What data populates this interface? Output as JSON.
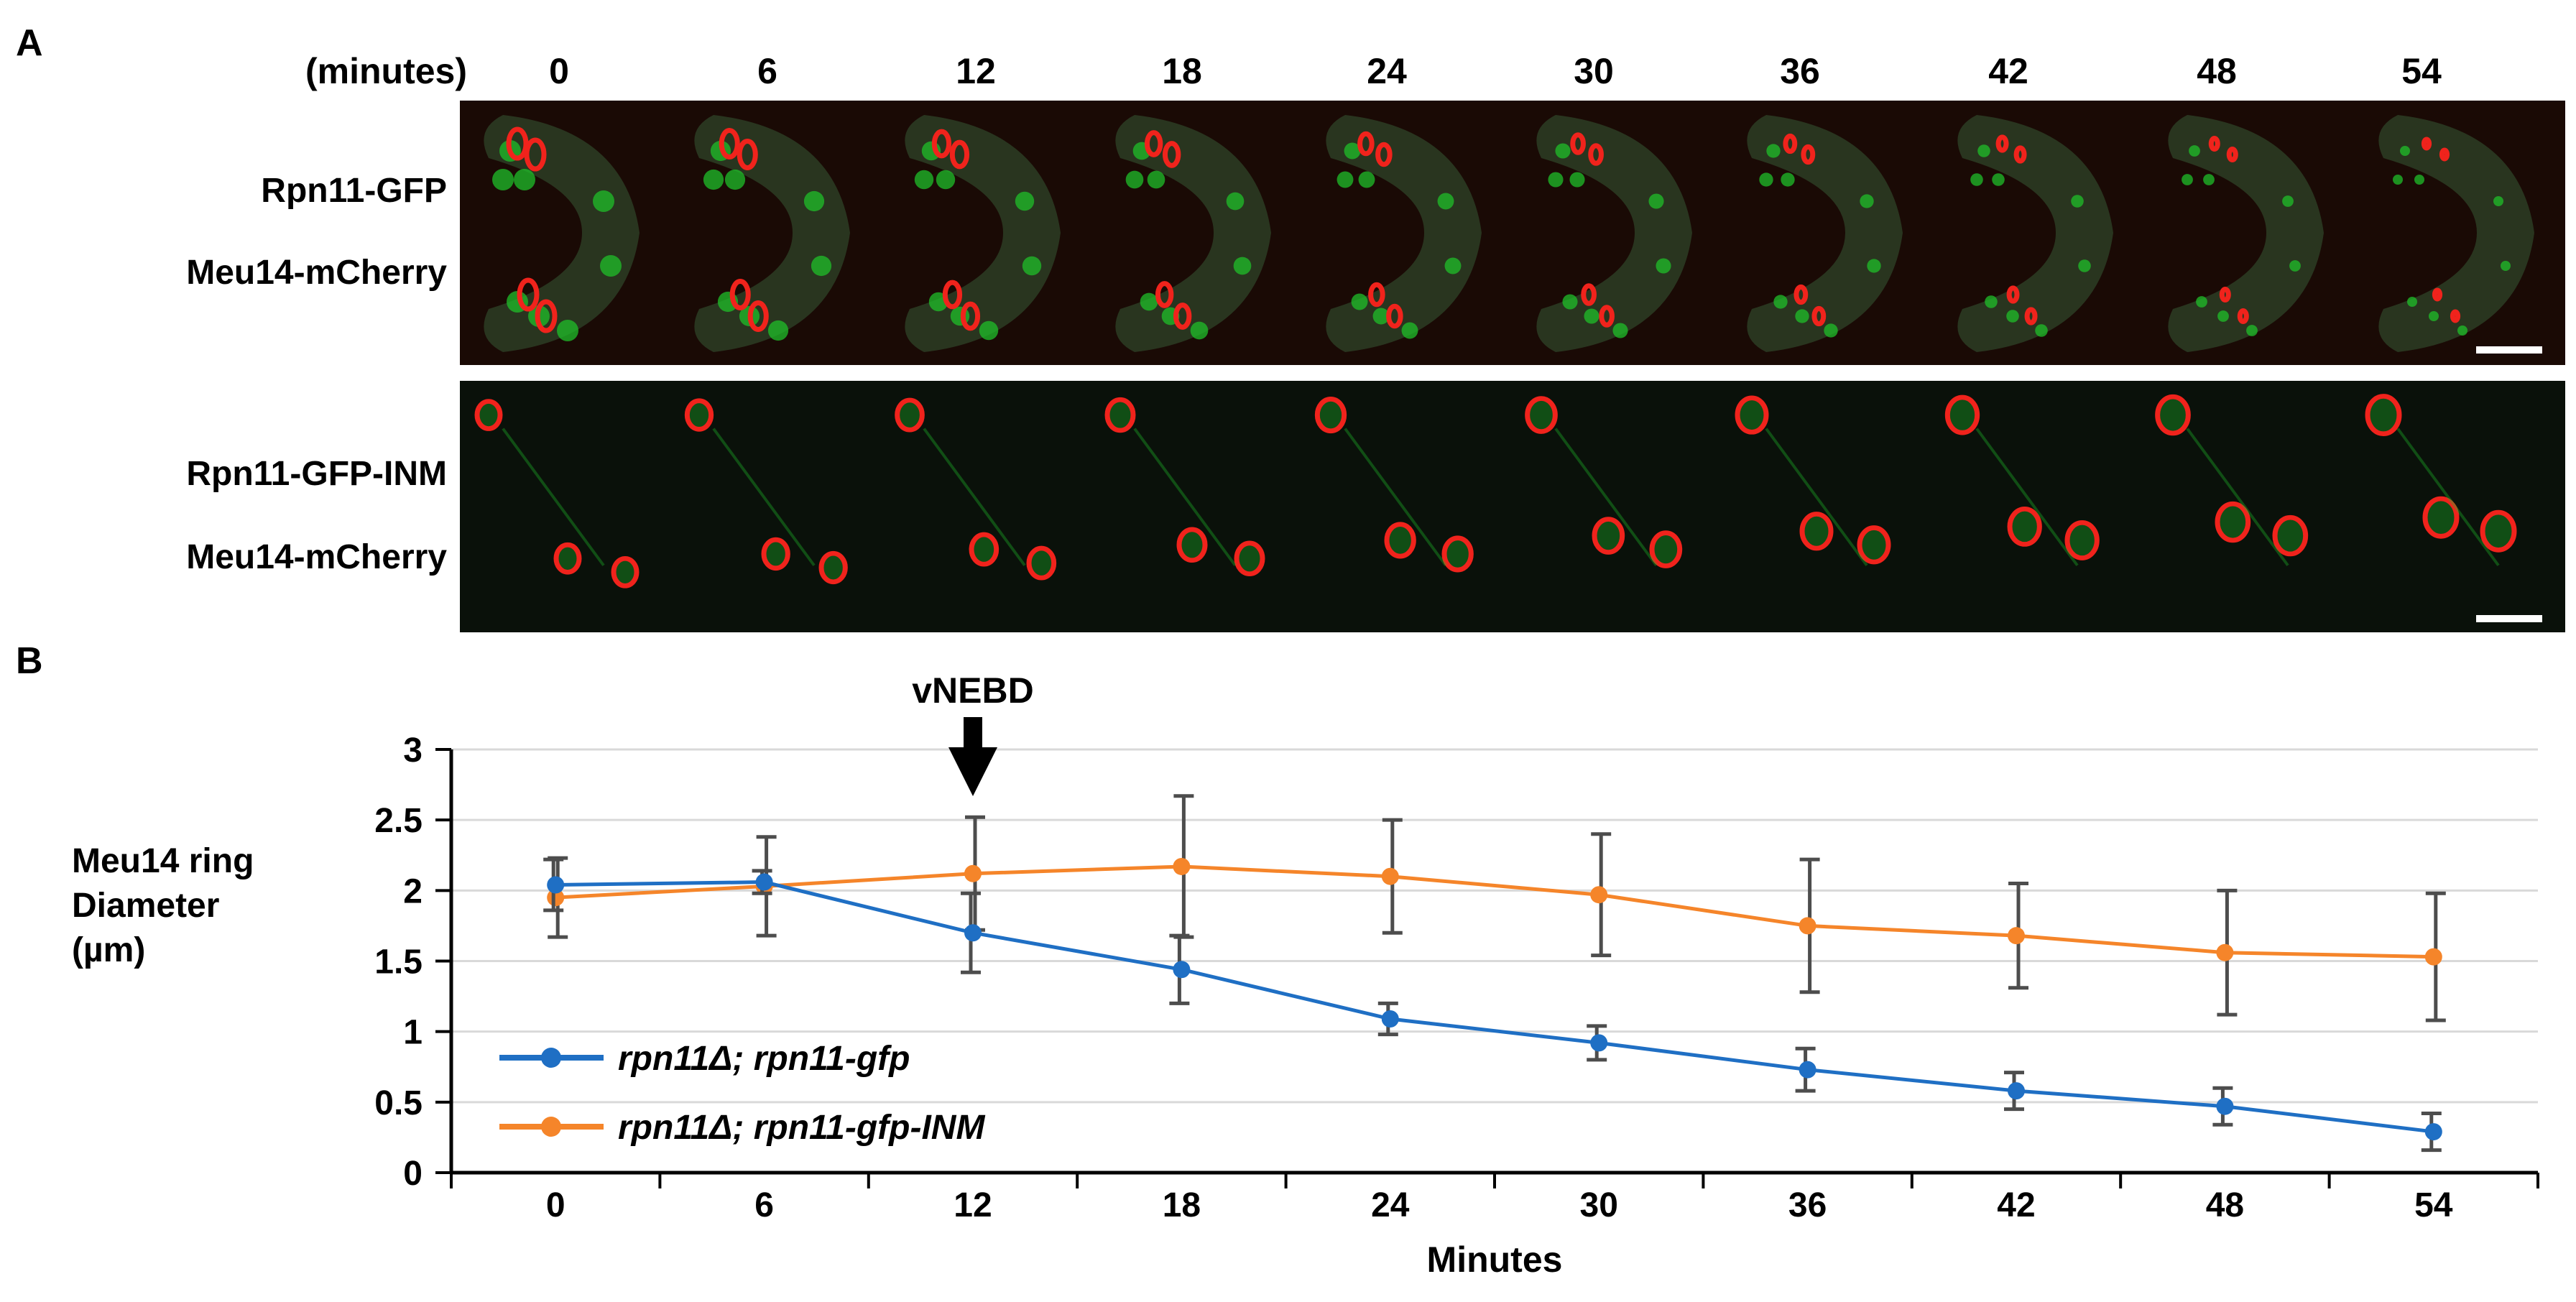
{
  "panel_a": {
    "letter": "A",
    "time_unit_label": "(minutes)",
    "time_points": [
      "0",
      "6",
      "12",
      "18",
      "24",
      "30",
      "36",
      "42",
      "48",
      "54"
    ],
    "row1": {
      "label_green": "Rpn11-GFP",
      "label_red": "Meu14-mCherry"
    },
    "row2": {
      "label_green": "Rpn11-GFP-INM",
      "label_red": "Meu14-mCherry"
    },
    "colors": {
      "green": "#1fbf2a",
      "red": "#f0231c"
    }
  },
  "panel_b": {
    "letter": "B",
    "annotation": "vNEBD",
    "ylabel_line1": "Meu14 ring",
    "ylabel_line2": "Diameter",
    "ylabel_line3": "(µm)"
  },
  "chart_data": {
    "type": "line",
    "title": "",
    "xlabel": "Minutes",
    "ylabel": "Meu14 ring Diameter (µm)",
    "categories": [
      "0",
      "6",
      "12",
      "18",
      "24",
      "30",
      "36",
      "42",
      "48",
      "54"
    ],
    "ylim": [
      0,
      3
    ],
    "yticks": [
      "0",
      "0.5",
      "1",
      "1.5",
      "2",
      "2.5",
      "3"
    ],
    "grid": true,
    "legend_position": "bottom-left",
    "annotation": {
      "text": "vNEBD",
      "at_category": "12"
    },
    "series": [
      {
        "name": "rpn11Δ; rpn11-gfp",
        "color": "#1f6fc4",
        "values": [
          2.04,
          2.06,
          1.7,
          1.44,
          1.09,
          0.92,
          0.73,
          0.58,
          0.47,
          0.29
        ],
        "errors": [
          0.18,
          0.08,
          0.28,
          0.24,
          0.11,
          0.12,
          0.15,
          0.13,
          0.13,
          0.13
        ]
      },
      {
        "name": "rpn11Δ; rpn11-gfp-INM",
        "color": "#f5852a",
        "values": [
          1.95,
          2.03,
          2.12,
          2.17,
          2.1,
          1.97,
          1.75,
          1.68,
          1.56,
          1.53
        ],
        "errors": [
          0.28,
          0.35,
          0.4,
          0.5,
          0.4,
          0.43,
          0.47,
          0.37,
          0.44,
          0.45
        ]
      }
    ]
  }
}
